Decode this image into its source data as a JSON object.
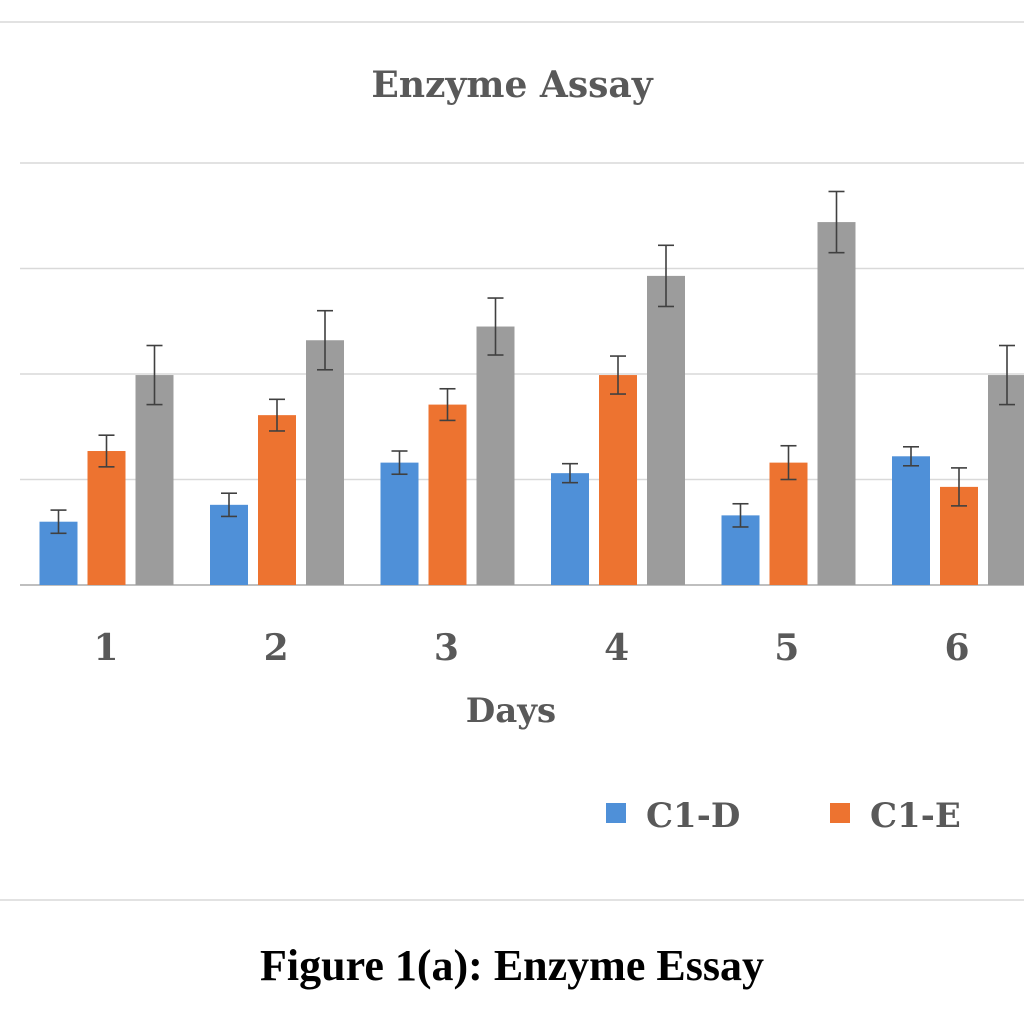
{
  "caption": "Figure 1(a): Enzyme Essay",
  "colors": {
    "C1-D": "#4f90d8",
    "C1-E": "#ed7330",
    "third": "#9c9c9c",
    "grid": "#d9d9d9",
    "text": "#595959",
    "error_bar": "#404040"
  },
  "chart_data": {
    "type": "bar",
    "title": "Enzyme Assay",
    "xlabel": "Days",
    "ylabel": "",
    "categories": [
      "1",
      "2",
      "3",
      "4",
      "5",
      "6"
    ],
    "ylim": [
      0,
      4
    ],
    "grid": true,
    "legend_position": "bottom",
    "series": [
      {
        "name": "C1-D",
        "values": [
          0.6,
          0.76,
          1.16,
          1.06,
          0.66,
          1.22
        ],
        "errors": [
          0.11,
          0.11,
          0.11,
          0.09,
          0.11,
          0.09
        ]
      },
      {
        "name": "C1-E",
        "values": [
          1.27,
          1.61,
          1.71,
          1.99,
          1.16,
          0.93
        ],
        "errors": [
          0.15,
          0.15,
          0.15,
          0.18,
          0.16,
          0.18
        ]
      },
      {
        "name": "",
        "values": [
          1.99,
          2.32,
          2.45,
          2.93,
          3.44,
          1.99
        ],
        "errors": [
          0.28,
          0.28,
          0.27,
          0.29,
          0.29,
          0.28
        ]
      }
    ]
  }
}
